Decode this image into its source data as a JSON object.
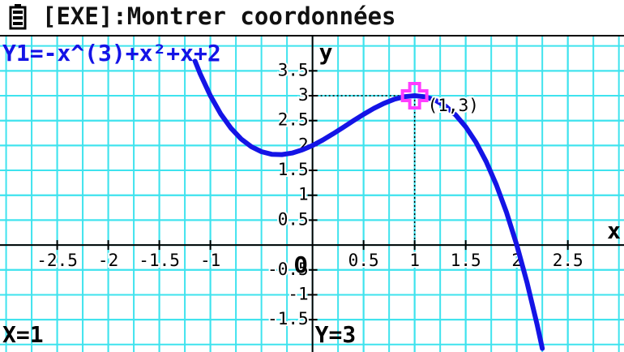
{
  "header": {
    "title": "[EXE]:Montrer coordonnées"
  },
  "chart_data": {
    "type": "line",
    "x": [
      -1.15,
      -1.1,
      -1.0,
      -0.9,
      -0.8,
      -0.7,
      -0.6,
      -0.5,
      -0.4,
      -0.3,
      -0.2,
      -0.1,
      0,
      0.1,
      0.2,
      0.3,
      0.4,
      0.5,
      0.6,
      0.7,
      0.8,
      0.9,
      1.0,
      1.1,
      1.2,
      1.3,
      1.4,
      1.5,
      1.6,
      1.7,
      1.8,
      1.9,
      2.0,
      2.1,
      2.2,
      2.25
    ],
    "series": [
      {
        "name": "Y1=-x^(3)+x²+x+2",
        "color": "#1414e6",
        "values": [
          3.694,
          3.441,
          3,
          2.639,
          2.352,
          2.133,
          1.976,
          1.875,
          1.824,
          1.817,
          1.848,
          1.911,
          2,
          2.109,
          2.232,
          2.363,
          2.496,
          2.625,
          2.744,
          2.847,
          2.928,
          2.981,
          3,
          2.979,
          2.912,
          2.793,
          2.616,
          2.375,
          2.064,
          1.677,
          1.208,
          0.651,
          0,
          -0.751,
          -1.608,
          -2.078
        ]
      }
    ],
    "xlim": [
      -3.06,
      3.05
    ],
    "ylim": [
      -2.15,
      4.19
    ],
    "xticks": [
      -2.5,
      -2,
      -1.5,
      -1,
      0.5,
      1,
      1.5,
      2,
      2.5
    ],
    "yticks": [
      3.5,
      3,
      2.5,
      2,
      1.5,
      1,
      0.5,
      -0.5,
      -1,
      -1.5
    ],
    "x_label": "x",
    "y_label": "y",
    "origin_label": "O",
    "grid": true,
    "grid_color": "#3fe3ee",
    "cursor": {
      "x": 1,
      "y": 3,
      "label": "(1,3)",
      "color": "#ff3cff"
    },
    "x_readout": "X=1",
    "y_readout": "Y=3"
  }
}
